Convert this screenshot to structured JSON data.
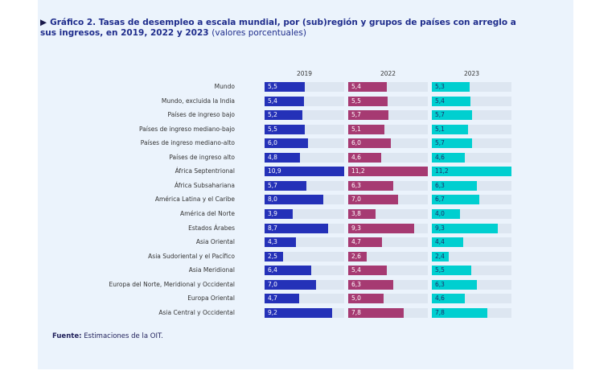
{
  "title": {
    "bold": "Gráfico 2.  Tasas de desempleo a escala mundial, por (sub)región y grupos de países con arreglo a sus ingresos, en 2019, 2022 y 2023",
    "normal": "(valores porcentuales)"
  },
  "source": {
    "label": "Fuente:",
    "text": "Estimaciones de la OIT."
  },
  "chart_data": {
    "type": "bar",
    "orientation": "horizontal",
    "categories": [
      "Mundo",
      "Mundo, excluida la India",
      "Países de ingreso bajo",
      "Países de ingreso mediano-bajo",
      "Países de ingreso mediano-alto",
      "Países de ingreso alto",
      "África Septentrional",
      "África Subsahariana",
      "América Latina y el Caribe",
      "América del Norte",
      "Estados Árabes",
      "Asia Oriental",
      "Asia Sudoriental y el Pacífico",
      "Asia Meridional",
      "Europa del Norte, Meridional y Occidental",
      "Europa Oriental",
      "Asia Central y Occidental"
    ],
    "series": [
      {
        "name": "2019",
        "color": "#2431b8",
        "text_color": "#ffffff",
        "values": [
          5.5,
          5.4,
          5.2,
          5.5,
          6.0,
          4.8,
          10.9,
          5.7,
          8.0,
          3.9,
          8.7,
          4.3,
          2.5,
          6.4,
          7.0,
          4.7,
          9.2
        ],
        "labels": [
          "5,5",
          "5,4",
          "5,2",
          "5,5",
          "6,0",
          "4,8",
          "10,9",
          "5,7",
          "8,0",
          "3,9",
          "8,7",
          "4,3",
          "2,5",
          "6,4",
          "7,0",
          "4,7",
          "9,2"
        ]
      },
      {
        "name": "2022",
        "color": "#a63a72",
        "text_color": "#ffffff",
        "values": [
          5.4,
          5.5,
          5.7,
          5.1,
          6.0,
          4.6,
          11.2,
          6.3,
          7.0,
          3.8,
          9.3,
          4.7,
          2.6,
          5.4,
          6.3,
          5.0,
          7.8
        ],
        "labels": [
          "5,4",
          "5,5",
          "5,7",
          "5,1",
          "6,0",
          "4,6",
          "11,2",
          "6,3",
          "7,0",
          "3,8",
          "9,3",
          "4,7",
          "2,6",
          "5,4",
          "6,3",
          "5,0",
          "7,8"
        ]
      },
      {
        "name": "2023",
        "color": "#00cfd0",
        "text_color": "#1f2d6a",
        "values": [
          5.3,
          5.4,
          5.7,
          5.1,
          5.7,
          4.6,
          11.2,
          6.3,
          6.7,
          4.0,
          9.3,
          4.4,
          2.4,
          5.5,
          6.3,
          4.6,
          7.8
        ],
        "labels": [
          "5,3",
          "5,4",
          "5,7",
          "5,1",
          "5,7",
          "4,6",
          "11,2",
          "6,3",
          "6,7",
          "4,0",
          "9,3",
          "4,4",
          "2,4",
          "5,5",
          "6,3",
          "4,6",
          "7,8"
        ]
      }
    ],
    "track_color": "#dde6f1",
    "xlim": [
      0,
      11.2
    ],
    "grid": false,
    "legend": "column headers"
  }
}
